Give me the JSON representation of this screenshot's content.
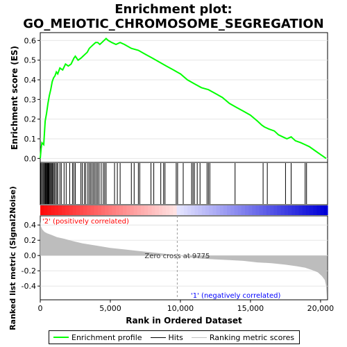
{
  "chart_data": {
    "type": "line",
    "title_line1": "Enrichment plot:",
    "title_line2": "GO_MEIOTIC_CHROMOSOME_SEGREGATION",
    "top_panel": {
      "ylabel": "Enrichment score (ES)",
      "ylim": [
        -0.02,
        0.64
      ],
      "yticks": [
        "0.0",
        "0.1",
        "0.2",
        "0.3",
        "0.4",
        "0.5",
        "0.6"
      ],
      "ytick_values": [
        0.0,
        0.1,
        0.2,
        0.3,
        0.4,
        0.5,
        0.6
      ],
      "series": [
        {
          "name": "Enrichment profile",
          "color": "#00ff00",
          "x": [
            0,
            60,
            120,
            250,
            350,
            450,
            550,
            650,
            750,
            850,
            950,
            1050,
            1150,
            1250,
            1400,
            1600,
            1800,
            2000,
            2200,
            2400,
            2500,
            2700,
            2900,
            3050,
            3200,
            3350,
            3500,
            3650,
            3800,
            3950,
            4100,
            4250,
            4400,
            4550,
            4700,
            4850,
            5100,
            5400,
            5700,
            6000,
            6500,
            7000,
            7500,
            8000,
            8500,
            9000,
            9500,
            10000,
            10500,
            11000,
            11500,
            12000,
            12500,
            13000,
            13500,
            14000,
            14500,
            15000,
            15500,
            15800,
            16000,
            16300,
            16700,
            17000,
            17300,
            17600,
            17900,
            18200,
            18600,
            18900,
            19200,
            19600,
            20000,
            20400
          ],
          "y": [
            0.0,
            0.05,
            0.08,
            0.07,
            0.19,
            0.23,
            0.28,
            0.32,
            0.35,
            0.39,
            0.41,
            0.42,
            0.44,
            0.43,
            0.46,
            0.45,
            0.48,
            0.47,
            0.48,
            0.51,
            0.52,
            0.5,
            0.51,
            0.52,
            0.53,
            0.54,
            0.56,
            0.57,
            0.58,
            0.59,
            0.59,
            0.58,
            0.59,
            0.6,
            0.61,
            0.6,
            0.59,
            0.58,
            0.59,
            0.58,
            0.56,
            0.55,
            0.53,
            0.51,
            0.49,
            0.47,
            0.45,
            0.43,
            0.4,
            0.38,
            0.36,
            0.35,
            0.33,
            0.31,
            0.28,
            0.26,
            0.24,
            0.22,
            0.19,
            0.17,
            0.16,
            0.15,
            0.14,
            0.12,
            0.11,
            0.1,
            0.11,
            0.09,
            0.08,
            0.07,
            0.06,
            0.04,
            0.02,
            0.0
          ]
        }
      ]
    },
    "hits_panel": {
      "hit_positions": [
        30,
        90,
        160,
        230,
        300,
        340,
        390,
        430,
        480,
        520,
        570,
        620,
        680,
        740,
        800,
        860,
        930,
        1000,
        1080,
        1180,
        1250,
        1400,
        1500,
        1700,
        1850,
        2100,
        2300,
        2400,
        2500,
        2900,
        3000,
        3150,
        3250,
        3400,
        3500,
        3600,
        3700,
        3800,
        3900,
        4000,
        4100,
        4200,
        4350,
        4500,
        4600,
        4700,
        5300,
        5500,
        5700,
        6500,
        6700,
        7000,
        7100,
        7900,
        8100,
        8600,
        8800,
        8900,
        9700,
        9800,
        10200,
        10800,
        10900,
        11000,
        11200,
        11400,
        11900,
        12000,
        12100,
        13900,
        15900,
        16200,
        17500,
        17900,
        18900,
        19000
      ]
    },
    "bottom_panel": {
      "ylabel": "Ranked list metric (Signal2Noise)",
      "xlabel": "Rank in Ordered Dataset",
      "ylim": [
        -0.58,
        0.52
      ],
      "yticks": [
        "0.4",
        "0.2",
        "0.0",
        "-0.2",
        "-0.4"
      ],
      "ytick_values": [
        0.4,
        0.2,
        0.0,
        -0.2,
        -0.4
      ],
      "xlim": [
        0,
        20500
      ],
      "xticks": [
        "0",
        "5,000",
        "10,000",
        "15,000",
        "20,000"
      ],
      "xtick_values": [
        0,
        5000,
        10000,
        15000,
        20000
      ],
      "metric_x": [
        0,
        50,
        150,
        300,
        500,
        800,
        1200,
        1700,
        2300,
        3000,
        4000,
        5000,
        6000,
        7000,
        8000,
        9000,
        9775,
        10500,
        11500,
        12500,
        13500,
        14500,
        15500,
        16500,
        17500,
        18300,
        18900,
        19400,
        19800,
        20100,
        20300,
        20400,
        20450
      ],
      "metric_y": [
        0.45,
        0.38,
        0.34,
        0.31,
        0.29,
        0.27,
        0.24,
        0.22,
        0.19,
        0.16,
        0.13,
        0.1,
        0.08,
        0.06,
        0.04,
        0.02,
        0.0,
        -0.02,
        -0.04,
        -0.05,
        -0.06,
        -0.07,
        -0.09,
        -0.1,
        -0.12,
        -0.14,
        -0.16,
        -0.19,
        -0.22,
        -0.27,
        -0.32,
        -0.4,
        -0.55
      ],
      "zero_cross_label": "Zero cross at 9775",
      "zero_cross": 9775,
      "pos_label": "'2' (positively correlated)",
      "neg_label": "'1' (negatively correlated)",
      "pos_color": "#ff0000",
      "neg_color": "#0000ff"
    },
    "legend": [
      {
        "label": "Enrichment profile",
        "color": "#00ff00"
      },
      {
        "label": "Hits",
        "color": "#000000"
      },
      {
        "label": "Ranking metric scores",
        "color": "#c0c0c0"
      }
    ]
  }
}
